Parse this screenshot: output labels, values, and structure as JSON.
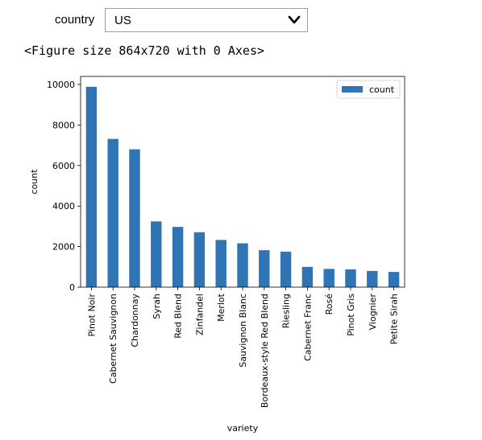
{
  "widget": {
    "label": "country",
    "selected": "US",
    "icon": "chevron-down-icon"
  },
  "output_text": "<Figure size 864x720 with 0 Axes>",
  "chart_data": {
    "type": "bar",
    "categories": [
      "Pinot Noir",
      "Cabernet Sauvignon",
      "Chardonnay",
      "Syrah",
      "Red Blend",
      "Zinfandel",
      "Merlot",
      "Sauvignon Blanc",
      "Bordeaux-style Red Blend",
      "Riesling",
      "Cabernet Franc",
      "Rosé",
      "Pinot Gris",
      "Viognier",
      "Petite Sirah"
    ],
    "series": [
      {
        "name": "count",
        "values": [
          9885,
          7315,
          6801,
          3244,
          2972,
          2711,
          2330,
          2163,
          1824,
          1753,
          1000,
          900,
          880,
          800,
          750
        ],
        "color": "#2f74b5"
      }
    ],
    "xlabel": "variety",
    "ylabel": "count",
    "ylim": [
      0,
      10000
    ],
    "yticks": [
      0,
      2000,
      4000,
      6000,
      8000,
      10000
    ],
    "legend": {
      "placement": "top-right",
      "entries": [
        "count"
      ]
    },
    "grid": false
  }
}
